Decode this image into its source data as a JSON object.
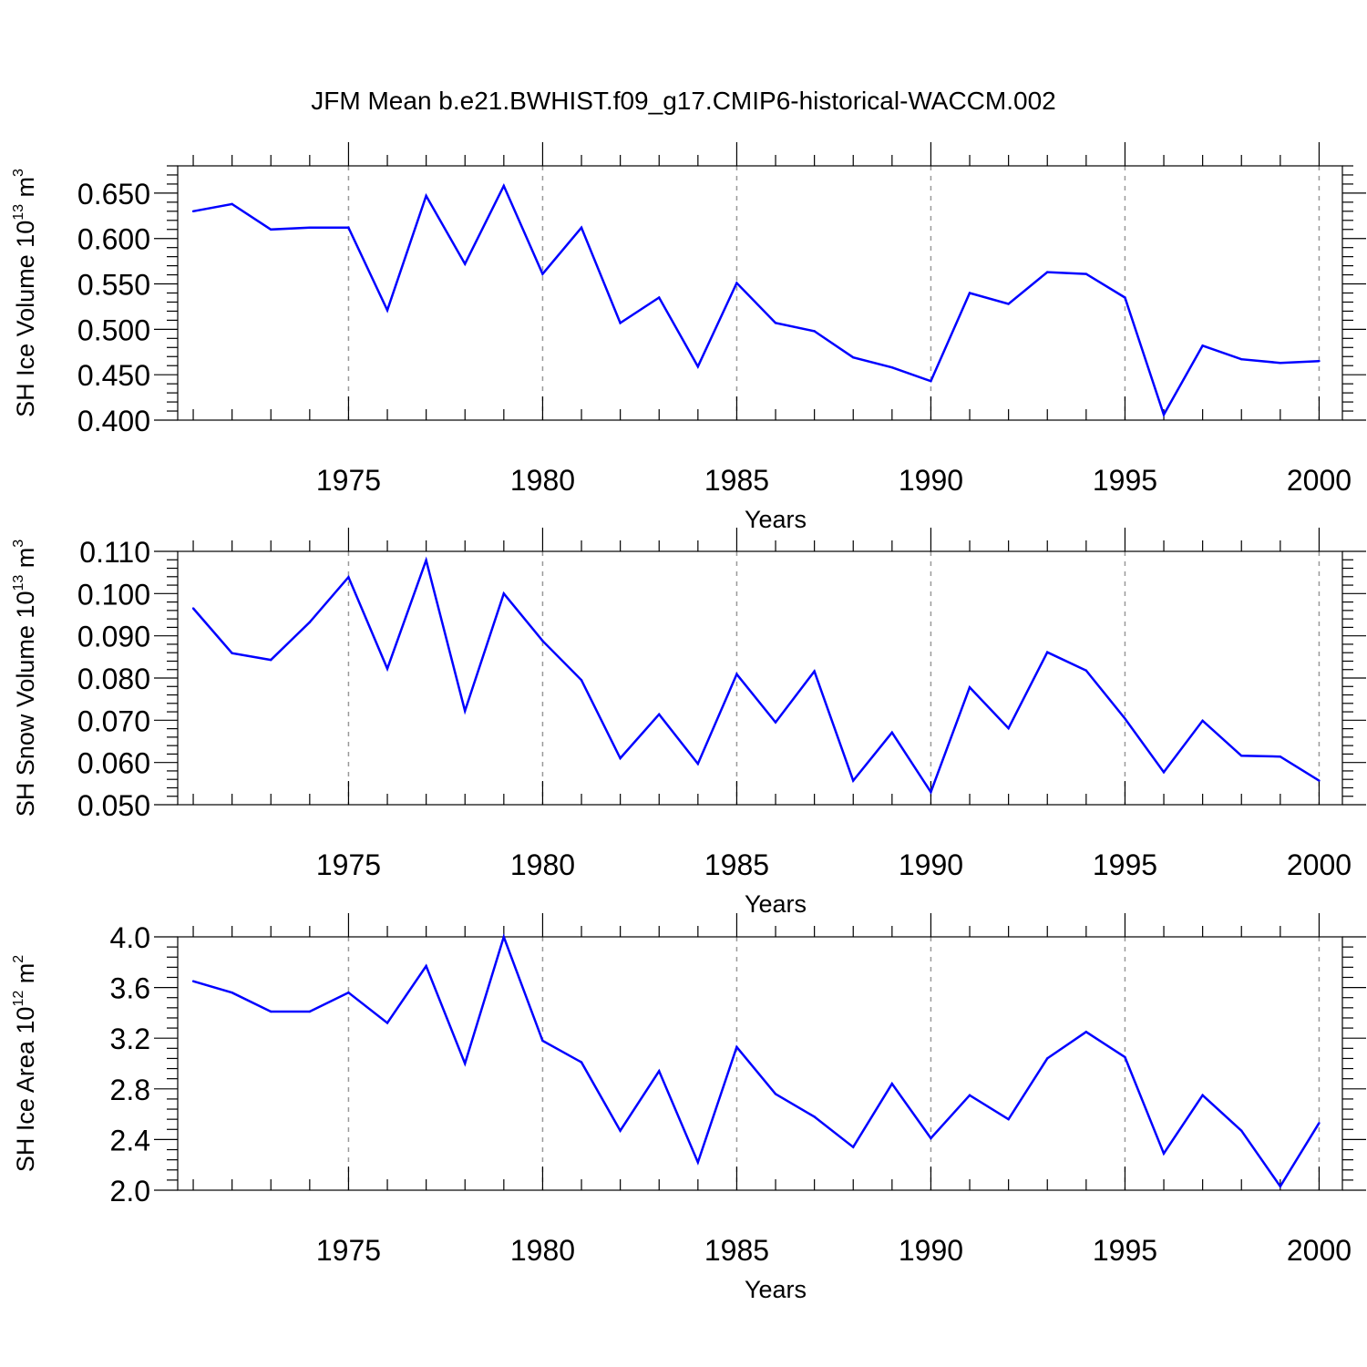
{
  "figure": {
    "title": "JFM Mean b.e21.BWHIST.f09_g17.CMIP6-historical-WACCM.002",
    "line_color": "#0000ff",
    "grid_color": "#999999"
  },
  "chart_data": [
    {
      "type": "line",
      "name": "ice-volume",
      "xlabel": "Years",
      "ylabel": {
        "text": "SH Ice Volume 10",
        "exp": "13",
        "unit": " m",
        "unit_exp": "3"
      },
      "xlim": [
        1971,
        2000
      ],
      "ylim": [
        0.4,
        0.68
      ],
      "xticks": [
        1975,
        1980,
        1985,
        1990,
        1995,
        2000
      ],
      "xtick_labels": [
        "1975",
        "1980",
        "1985",
        "1990",
        "1995",
        "2000"
      ],
      "yticks": [
        0.4,
        0.45,
        0.5,
        0.55,
        0.6,
        0.65
      ],
      "ytick_labels": [
        "0.400",
        "0.450",
        "0.500",
        "0.550",
        "0.600",
        "0.650"
      ],
      "grid": "vertical dashed at major ticks",
      "x": [
        1971,
        1972,
        1973,
        1974,
        1975,
        1976,
        1977,
        1978,
        1979,
        1980,
        1981,
        1982,
        1983,
        1984,
        1985,
        1986,
        1987,
        1988,
        1989,
        1990,
        1991,
        1992,
        1993,
        1994,
        1995,
        1996,
        1997,
        1998,
        1999,
        2000
      ],
      "y": [
        0.63,
        0.638,
        0.61,
        0.612,
        0.612,
        0.521,
        0.647,
        0.572,
        0.658,
        0.561,
        0.612,
        0.507,
        0.535,
        0.459,
        0.551,
        0.507,
        0.498,
        0.469,
        0.458,
        0.443,
        0.54,
        0.528,
        0.563,
        0.561,
        0.535,
        0.406,
        0.482,
        0.467,
        0.463,
        0.465
      ]
    },
    {
      "type": "line",
      "name": "snow-volume",
      "xlabel": "Years",
      "ylabel": {
        "text": "SH Snow Volume 10",
        "exp": "13",
        "unit": " m",
        "unit_exp": "3"
      },
      "xlim": [
        1971,
        2000
      ],
      "ylim": [
        0.05,
        0.11
      ],
      "xticks": [
        1975,
        1980,
        1985,
        1990,
        1995,
        2000
      ],
      "xtick_labels": [
        "1975",
        "1980",
        "1985",
        "1990",
        "1995",
        "2000"
      ],
      "yticks": [
        0.05,
        0.06,
        0.07,
        0.08,
        0.09,
        0.1,
        0.11
      ],
      "ytick_labels": [
        "0.050",
        "0.060",
        "0.070",
        "0.080",
        "0.090",
        "0.100",
        "0.110"
      ],
      "grid": "vertical dashed at major ticks",
      "x": [
        1971,
        1972,
        1973,
        1974,
        1975,
        1976,
        1977,
        1978,
        1979,
        1980,
        1981,
        1982,
        1983,
        1984,
        1985,
        1986,
        1987,
        1988,
        1989,
        1990,
        1991,
        1992,
        1993,
        1994,
        1995,
        1996,
        1997,
        1998,
        1999,
        2000
      ],
      "y": [
        0.0965,
        0.0859,
        0.0843,
        0.0932,
        0.1039,
        0.0822,
        0.1079,
        0.0722,
        0.1,
        0.0888,
        0.0795,
        0.061,
        0.0714,
        0.0597,
        0.0809,
        0.0695,
        0.0816,
        0.0557,
        0.0671,
        0.053,
        0.0778,
        0.0681,
        0.0861,
        0.0818,
        0.0704,
        0.0577,
        0.0699,
        0.0616,
        0.0614,
        0.0557
      ]
    },
    {
      "type": "line",
      "name": "ice-area",
      "xlabel": "Years",
      "ylabel": {
        "text": "SH Ice Area 10",
        "exp": "12",
        "unit": " m",
        "unit_exp": "2"
      },
      "xlim": [
        1971,
        2000
      ],
      "ylim": [
        2.0,
        4.0
      ],
      "xticks": [
        1975,
        1980,
        1985,
        1990,
        1995,
        2000
      ],
      "xtick_labels": [
        "1975",
        "1980",
        "1985",
        "1990",
        "1995",
        "2000"
      ],
      "yticks": [
        2.0,
        2.4,
        2.8,
        3.2,
        3.6,
        4.0
      ],
      "ytick_labels": [
        "2.0",
        "2.4",
        "2.8",
        "3.2",
        "3.6",
        "4.0"
      ],
      "grid": "vertical dashed at major ticks",
      "x": [
        1971,
        1972,
        1973,
        1974,
        1975,
        1976,
        1977,
        1978,
        1979,
        1980,
        1981,
        1982,
        1983,
        1984,
        1985,
        1986,
        1987,
        1988,
        1989,
        1990,
        1991,
        1992,
        1993,
        1994,
        1995,
        1996,
        1997,
        1998,
        1999,
        2000
      ],
      "y": [
        3.65,
        3.56,
        3.41,
        3.41,
        3.56,
        3.32,
        3.77,
        3.0,
        4.0,
        3.18,
        3.01,
        2.47,
        2.94,
        2.22,
        3.13,
        2.76,
        2.58,
        2.34,
        2.84,
        2.41,
        2.75,
        2.56,
        3.04,
        3.25,
        3.05,
        2.29,
        2.75,
        2.47,
        2.03,
        2.53
      ]
    }
  ]
}
